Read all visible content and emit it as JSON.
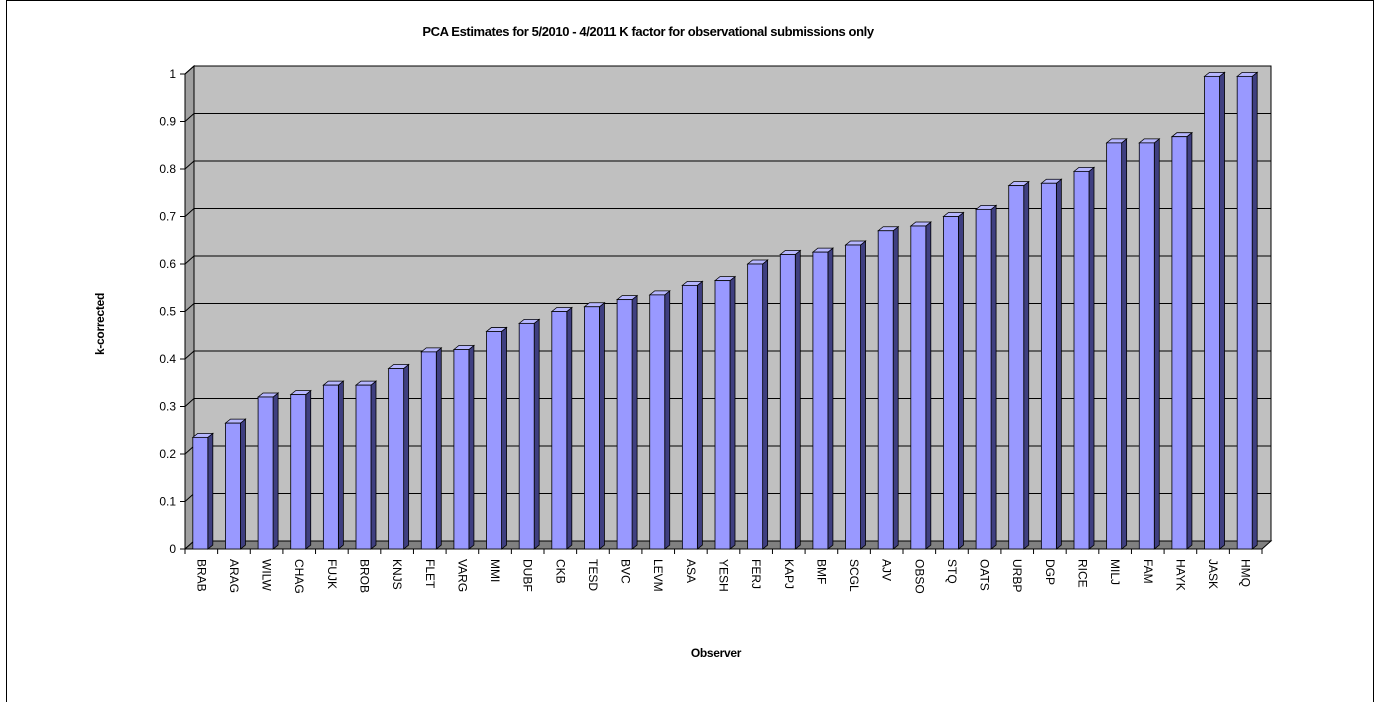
{
  "chart_data": {
    "type": "bar",
    "title": "PCA Estimates for 5/2010 - 4/2011 K factor for observational submissions only",
    "xlabel": "Observer",
    "ylabel": "k-corrected",
    "ylim": [
      0,
      1
    ],
    "yticks": [
      "0",
      "0.1",
      "0.2",
      "0.3",
      "0.4",
      "0.5",
      "0.6",
      "0.7",
      "0.8",
      "0.9",
      "1"
    ],
    "categories": [
      "BRAB",
      "ARAG",
      "WILW",
      "CHAG",
      "FUJK",
      "BROB",
      "KNJS",
      "FLET",
      "VARG",
      "MMI",
      "DUBF",
      "CKB",
      "TESD",
      "BVC",
      "LEVM",
      "ASA",
      "YESH",
      "FERJ",
      "KAPJ",
      "BMF",
      "SCGL",
      "AJV",
      "OBSO",
      "STQ",
      "OATS",
      "URBP",
      "DGP",
      "RICE",
      "MILJ",
      "FAM",
      "HAYK",
      "JASK",
      "HMQ"
    ],
    "values": [
      0.235,
      0.265,
      0.32,
      0.325,
      0.345,
      0.345,
      0.38,
      0.415,
      0.42,
      0.458,
      0.475,
      0.5,
      0.51,
      0.525,
      0.535,
      0.555,
      0.565,
      0.6,
      0.62,
      0.625,
      0.64,
      0.67,
      0.68,
      0.7,
      0.715,
      0.765,
      0.77,
      0.795,
      0.855,
      0.855,
      0.868,
      0.995,
      0.995
    ],
    "grid": true,
    "colors": {
      "bar_front": "#9999ff",
      "bar_side": "#3f3f80",
      "bar_top": "#b7b7ff",
      "plot_back": "#c0c0c0",
      "plot_floor": "#808080",
      "plot_wall": "#a0a0a0"
    }
  }
}
